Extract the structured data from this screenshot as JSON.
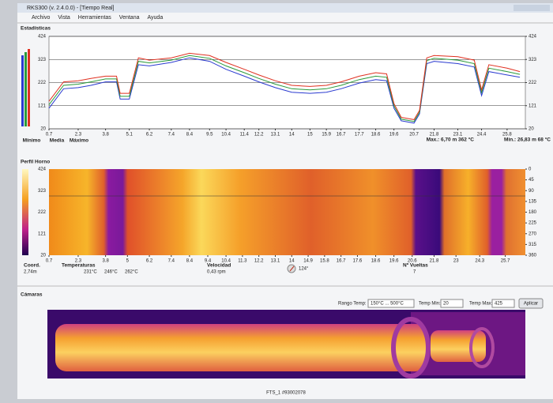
{
  "window": {
    "title": "RKS300 (v. 2.4.0.0) - [Tiempo Real]",
    "menu": [
      "Archivo",
      "Vista",
      "Herramientas",
      "Ventana",
      "Ayuda"
    ]
  },
  "chart_data": [
    {
      "type": "line",
      "title": "Estadísticas",
      "x": [
        0.7,
        1.5,
        2.3,
        3.0,
        3.8,
        4.4,
        4.6,
        5.1,
        5.6,
        6.2,
        7.4,
        8.4,
        9.5,
        10.4,
        11.4,
        12.2,
        13.1,
        14.0,
        15.0,
        15.9,
        16.7,
        17.7,
        18.6,
        19.2,
        19.6,
        20.0,
        20.7,
        21.0,
        21.4,
        21.8,
        23.1,
        24.0,
        24.4,
        24.8,
        25.8,
        26.5
      ],
      "series": [
        {
          "name": "Mínimo",
          "color": "#2a3ad0",
          "values": [
            110,
            195,
            200,
            210,
            225,
            225,
            150,
            150,
            300,
            295,
            310,
            330,
            315,
            280,
            250,
            225,
            200,
            180,
            175,
            180,
            195,
            220,
            235,
            230,
            110,
            55,
            45,
            85,
            305,
            315,
            305,
            290,
            165,
            270,
            255,
            245
          ]
        },
        {
          "name": "Media",
          "color": "#2a9a3a",
          "values": [
            125,
            210,
            215,
            225,
            238,
            238,
            162,
            162,
            315,
            308,
            320,
            340,
            328,
            295,
            265,
            240,
            215,
            195,
            190,
            195,
            210,
            235,
            250,
            245,
            120,
            62,
            52,
            92,
            318,
            328,
            320,
            305,
            178,
            285,
            270,
            258
          ]
        },
        {
          "name": "Máximo",
          "color": "#e03020",
          "values": [
            140,
            225,
            230,
            240,
            250,
            250,
            175,
            175,
            330,
            320,
            330,
            350,
            340,
            310,
            280,
            255,
            230,
            210,
            205,
            210,
            225,
            250,
            265,
            260,
            130,
            70,
            60,
            100,
            330,
            340,
            335,
            320,
            190,
            300,
            285,
            270
          ]
        }
      ],
      "xlim": [
        0.7,
        26.8
      ],
      "ylim": [
        20,
        424
      ],
      "yticks": [
        20,
        121,
        222,
        323,
        424
      ],
      "y2lim": [
        20,
        424
      ],
      "y2ticks": [
        20,
        121,
        222,
        323,
        424
      ],
      "xticks": [
        0.7,
        2.3,
        3.8,
        5.1,
        6.2,
        7.4,
        8.4,
        9.5,
        10.4,
        11.4,
        12.2,
        13.1,
        14.0,
        15.0,
        15.9,
        16.7,
        17.7,
        18.6,
        19.6,
        20.7,
        21.8,
        23.1,
        24.4,
        25.8
      ],
      "grid": true,
      "annotations": [
        {
          "text": "Max.: 6,70 m 362 °C",
          "color": "#e03020"
        },
        {
          "text": "Min.: 26,83 m 68 °C",
          "color": "#2a3ad0"
        }
      ]
    },
    {
      "type": "heatmap",
      "title": "Perfil Horno",
      "xlim": [
        0.7,
        26.8
      ],
      "ylim": [
        20,
        424
      ],
      "yticks": [
        20,
        121,
        222,
        323,
        424
      ],
      "y2lim": [
        360,
        0
      ],
      "y2ticks": [
        0,
        45,
        90,
        135,
        180,
        225,
        270,
        315,
        360
      ],
      "xticks": [
        0.7,
        2.3,
        3.8,
        5.0,
        6.2,
        7.4,
        8.4,
        9.4,
        10.4,
        11.3,
        12.2,
        13.1,
        14.0,
        14.9,
        15.8,
        16.7,
        17.6,
        18.6,
        19.6,
        20.6,
        21.8,
        23.0,
        24.3,
        25.7
      ]
    }
  ],
  "info": {
    "coord_label": "Coord.",
    "coord": "2,74m",
    "temps_label": "Temperaturas",
    "temps": [
      "231°C",
      "246°C",
      "262°C"
    ],
    "speed_label": "Velocidad",
    "speed": "0,43 rpm",
    "angle": "124°",
    "turns_label": "Nº Vueltas",
    "turns": "7"
  },
  "cameras": {
    "label": "Cámaras",
    "range_label": "Rango Temp:",
    "range": "150°C ... 500°C",
    "min_label": "Temp Min:",
    "min": "20",
    "max_label": "Temp Max:",
    "max": "425",
    "apply": "Aplicar",
    "caption": "FTS_1 #93002078"
  }
}
